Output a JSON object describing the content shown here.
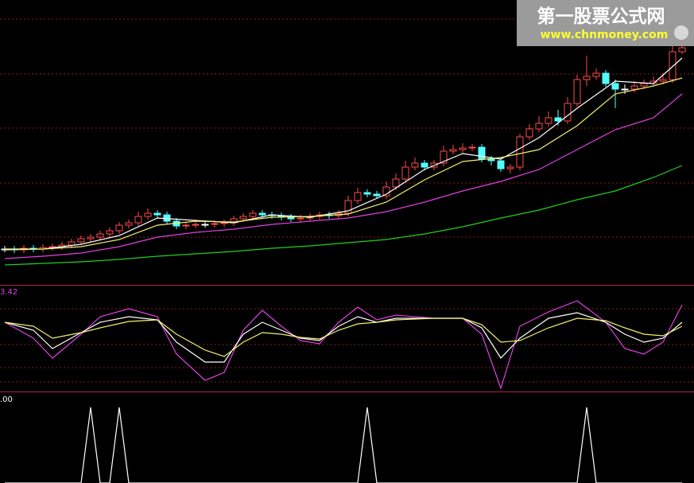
{
  "watermark": {
    "title": "第一股票公式网",
    "url": "www.chnmoney.com"
  },
  "chart_data": [
    {
      "type": "candlestick",
      "x": [
        0,
        1,
        2,
        3,
        4,
        5,
        6,
        7,
        8,
        9,
        10,
        11,
        12,
        13,
        14,
        15,
        16,
        17,
        18,
        19,
        20,
        21,
        22,
        23,
        24,
        25,
        26,
        27,
        28,
        29,
        30,
        31,
        32,
        33,
        34,
        35,
        36,
        37,
        38,
        39,
        40,
        41,
        42,
        43,
        44,
        45,
        46,
        47,
        48,
        49,
        50,
        51,
        52,
        53,
        54,
        55,
        56,
        57,
        58,
        59,
        60,
        61,
        62,
        63,
        64,
        65,
        66,
        67,
        68,
        69,
        70,
        71
      ],
      "open": [
        45,
        45,
        44,
        46,
        45,
        47,
        48,
        50,
        54,
        58,
        60,
        64,
        68,
        75,
        78,
        86,
        90,
        88,
        80,
        74,
        75,
        76,
        76,
        77,
        78,
        83,
        86,
        90,
        88,
        87,
        85,
        83,
        84,
        86,
        88,
        87,
        90,
        106,
        116,
        114,
        112,
        123,
        133,
        148,
        153,
        148,
        153,
        168,
        170,
        172,
        173,
        158,
        156,
        146,
        148,
        186,
        196,
        203,
        210,
        206,
        228,
        258,
        262,
        266,
        253,
        246,
        246,
        250,
        253,
        256,
        258,
        293
      ],
      "close": [
        45,
        44,
        46,
        45,
        47,
        48,
        50,
        54,
        58,
        60,
        64,
        68,
        75,
        78,
        86,
        90,
        88,
        80,
        74,
        75,
        76,
        76,
        77,
        78,
        83,
        86,
        90,
        88,
        87,
        85,
        83,
        84,
        86,
        88,
        87,
        90,
        106,
        116,
        114,
        112,
        123,
        133,
        148,
        153,
        148,
        153,
        168,
        170,
        172,
        173,
        158,
        156,
        146,
        148,
        186,
        196,
        203,
        210,
        206,
        228,
        258,
        262,
        266,
        253,
        246,
        246,
        250,
        253,
        256,
        258,
        293,
        298
      ],
      "high": [
        49,
        49,
        50,
        50,
        51,
        52,
        54,
        58,
        62,
        64,
        68,
        72,
        79,
        82,
        92,
        96,
        94,
        92,
        84,
        79,
        80,
        80,
        81,
        82,
        87,
        90,
        94,
        94,
        92,
        91,
        89,
        88,
        90,
        92,
        92,
        94,
        112,
        122,
        120,
        118,
        130,
        140,
        156,
        160,
        157,
        157,
        175,
        176,
        178,
        177,
        177,
        162,
        160,
        152,
        190,
        202,
        212,
        218,
        220,
        236,
        264,
        288,
        272,
        270,
        258,
        252,
        256,
        258,
        262,
        266,
        300,
        310
      ],
      "low": [
        41,
        40,
        40,
        41,
        41,
        43,
        44,
        46,
        50,
        54,
        56,
        60,
        64,
        71,
        74,
        82,
        84,
        76,
        70,
        70,
        71,
        72,
        72,
        73,
        74,
        79,
        82,
        84,
        83,
        81,
        79,
        79,
        80,
        82,
        83,
        83,
        86,
        102,
        110,
        108,
        108,
        119,
        129,
        144,
        144,
        144,
        149,
        164,
        166,
        168,
        154,
        150,
        142,
        140,
        144,
        182,
        192,
        199,
        200,
        202,
        224,
        250,
        258,
        249,
        222,
        240,
        242,
        246,
        250,
        252,
        254,
        290
      ],
      "up_color": "#ff4a4a",
      "down_color": "#54ffff",
      "flat_color": "#ffffff",
      "xlim": [
        -0.5,
        72.25
      ],
      "ylim": [
        0,
        358
      ],
      "series": [
        {
          "color": "#ffffff",
          "x": [
            0,
            4,
            8,
            12,
            16,
            20,
            24,
            28,
            32,
            36,
            40,
            44,
            48,
            52,
            56,
            60,
            64,
            68,
            71
          ],
          "values": [
            45,
            45,
            51,
            62,
            84,
            81,
            78,
            88,
            85,
            93,
            114,
            145,
            165,
            158,
            185,
            222,
            256,
            253,
            285
          ]
        },
        {
          "color": "#f0f070",
          "x": [
            0,
            4,
            8,
            12,
            16,
            20,
            24,
            28,
            32,
            36,
            40,
            44,
            48,
            52,
            56,
            60,
            64,
            68,
            71
          ],
          "values": [
            44,
            45,
            48,
            57,
            75,
            80,
            79,
            85,
            86,
            89,
            104,
            132,
            155,
            160,
            170,
            200,
            240,
            250,
            260
          ]
        },
        {
          "color": "#e040e0",
          "x": [
            0,
            4,
            8,
            12,
            16,
            20,
            24,
            28,
            32,
            36,
            40,
            44,
            48,
            52,
            56,
            60,
            64,
            68,
            71
          ],
          "values": [
            33,
            36,
            40,
            48,
            60,
            66,
            70,
            76,
            80,
            84,
            92,
            104,
            118,
            130,
            145,
            170,
            195,
            210,
            240
          ]
        },
        {
          "color": "#20d020",
          "x": [
            0,
            4,
            8,
            12,
            16,
            20,
            24,
            28,
            32,
            36,
            40,
            44,
            48,
            52,
            56,
            60,
            64,
            68,
            71
          ],
          "values": [
            25,
            27,
            29,
            32,
            36,
            39,
            42,
            46,
            49,
            53,
            57,
            64,
            73,
            84,
            94,
            107,
            118,
            135,
            150
          ]
        }
      ]
    },
    {
      "type": "line",
      "axis_label": "3.42",
      "label_color": "#e040e0",
      "xlim": [
        -0.5,
        72.25
      ],
      "ylim": [
        0,
        134
      ],
      "series": [
        {
          "color": "#e040e0",
          "x": [
            0,
            3,
            5,
            8,
            10,
            13,
            16,
            18,
            21,
            23,
            25,
            27,
            29,
            31,
            33,
            35,
            37,
            39,
            41,
            45,
            48,
            50,
            52,
            54,
            57,
            60,
            63,
            65,
            67,
            69,
            71
          ],
          "values": [
            87,
            67,
            42,
            72,
            94,
            104,
            94,
            47,
            14,
            24,
            77,
            102,
            82,
            64,
            60,
            87,
            106,
            90,
            96,
            92,
            92,
            72,
            4,
            82,
            100,
            114,
            87,
            54,
            47,
            62,
            109
          ]
        },
        {
          "color": "#ffffff",
          "x": [
            0,
            3,
            5,
            8,
            10,
            13,
            16,
            18,
            21,
            23,
            25,
            27,
            29,
            31,
            33,
            35,
            37,
            39,
            41,
            45,
            48,
            50,
            52,
            54,
            57,
            60,
            63,
            65,
            67,
            69,
            71
          ],
          "values": [
            87,
            77,
            54,
            74,
            87,
            94,
            90,
            62,
            37,
            37,
            72,
            87,
            77,
            67,
            64,
            82,
            94,
            87,
            92,
            92,
            92,
            80,
            42,
            67,
            92,
            99,
            87,
            72,
            62,
            67,
            87
          ]
        },
        {
          "color": "#f0f070",
          "x": [
            0,
            3,
            5,
            8,
            10,
            13,
            16,
            18,
            21,
            23,
            25,
            27,
            29,
            31,
            33,
            35,
            37,
            39,
            41,
            45,
            48,
            50,
            52,
            54,
            57,
            60,
            63,
            65,
            67,
            69,
            71
          ],
          "values": [
            87,
            82,
            67,
            74,
            80,
            88,
            90,
            72,
            52,
            44,
            62,
            74,
            72,
            68,
            66,
            77,
            85,
            87,
            90,
            92,
            92,
            84,
            62,
            64,
            80,
            92,
            89,
            80,
            72,
            70,
            82
          ]
        }
      ]
    },
    {
      "type": "line",
      "axis_label": ".00",
      "label_color": "#ffffff",
      "xlim": [
        -0.5,
        72.25
      ],
      "ylim": [
        0,
        1.2
      ],
      "color": "#ffffff",
      "x": [
        0,
        1,
        2,
        3,
        4,
        5,
        6,
        7,
        8,
        9,
        10,
        11,
        12,
        13,
        14,
        15,
        16,
        17,
        18,
        19,
        20,
        21,
        22,
        23,
        24,
        25,
        26,
        27,
        28,
        29,
        30,
        31,
        32,
        33,
        34,
        35,
        36,
        37,
        38,
        39,
        40,
        41,
        42,
        43,
        44,
        45,
        46,
        47,
        48,
        49,
        50,
        51,
        52,
        53,
        54,
        55,
        56,
        57,
        58,
        59,
        60,
        61,
        62,
        63,
        64,
        65,
        66,
        67,
        68,
        69,
        70,
        71
      ],
      "values": [
        0,
        0,
        0,
        0,
        0,
        0,
        0,
        0,
        0,
        1,
        0,
        0,
        1,
        0,
        0,
        0,
        0,
        0,
        0,
        0,
        0,
        0,
        0,
        0,
        0,
        0,
        0,
        0,
        0,
        0,
        0,
        0,
        0,
        0,
        0,
        0,
        0,
        0,
        1,
        0,
        0,
        0,
        0,
        0,
        0,
        0,
        0,
        0,
        0,
        0,
        0,
        0,
        0,
        0,
        0,
        0,
        0,
        0,
        0,
        0,
        0,
        1,
        0,
        0,
        0,
        0,
        0,
        0,
        0,
        0,
        0,
        0
      ]
    }
  ]
}
